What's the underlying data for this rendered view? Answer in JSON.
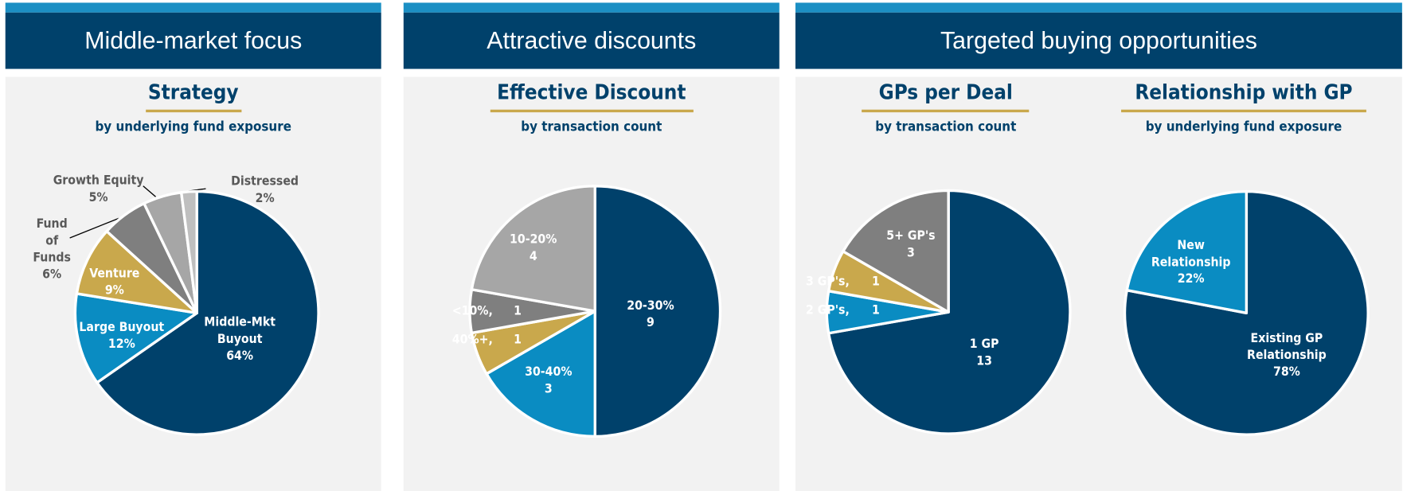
{
  "panels": [
    {
      "title": "Middle-market focus"
    },
    {
      "title": "Attractive discounts"
    },
    {
      "title": "Targeted buying opportunities"
    }
  ],
  "chart_data": [
    {
      "type": "pie",
      "title": "Strategy",
      "subtitle": "by underlying fund exposure",
      "categories": [
        "Middle-Mkt\nBuyout",
        "Large Buyout",
        "Venture",
        "Fund\nof\nFunds",
        "Growth Equity",
        "Distressed"
      ],
      "values": [
        64,
        12,
        9,
        6,
        5,
        2
      ],
      "value_labels": [
        "64%",
        "12%",
        "9%",
        "6%",
        "5%",
        "2%"
      ],
      "colors": [
        "#00416b",
        "#0a8cc2",
        "#c9a84c",
        "#7f7f7f",
        "#a6a6a6",
        "#bfbfbf"
      ]
    },
    {
      "type": "pie",
      "title": "Effective Discount",
      "subtitle": "by transaction count",
      "categories": [
        "20-30%",
        "30-40%",
        "40%+,",
        "<10%,",
        "10-20%"
      ],
      "values": [
        9,
        3,
        1,
        1,
        4
      ],
      "colors": [
        "#00416b",
        "#0a8cc2",
        "#c9a84c",
        "#7f7f7f",
        "#a6a6a6"
      ]
    },
    {
      "type": "pie",
      "title": "GPs per Deal",
      "subtitle": "by transaction count",
      "categories": [
        "1 GP",
        "2 GP's,",
        "3 GP's,",
        "5+ GP's"
      ],
      "values": [
        13,
        1,
        1,
        3
      ],
      "colors": [
        "#00416b",
        "#0a8cc2",
        "#c9a84c",
        "#7f7f7f"
      ]
    },
    {
      "type": "pie",
      "title": "Relationship with GP",
      "subtitle": "by underlying fund exposure",
      "categories": [
        "Existing GP\nRelationship",
        "New\nRelationship"
      ],
      "values": [
        78,
        22
      ],
      "value_labels": [
        "78%",
        "22%"
      ],
      "colors": [
        "#00416b",
        "#0a8cc2"
      ]
    }
  ]
}
